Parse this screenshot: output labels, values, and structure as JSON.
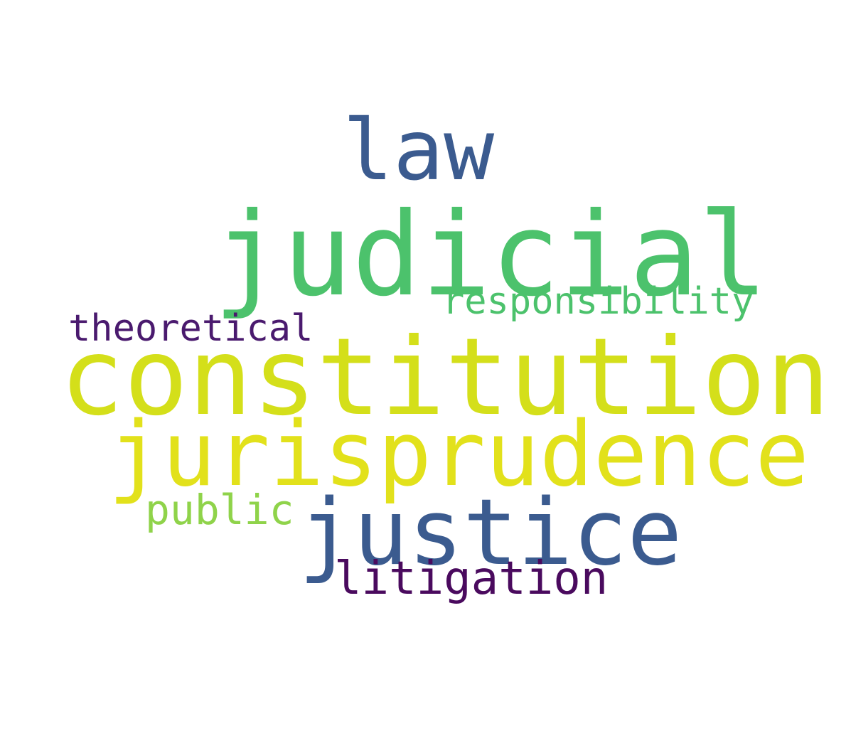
{
  "words": [
    {
      "id": "law",
      "text": "law",
      "color": "#3b5b8f"
    },
    {
      "id": "judicial",
      "text": "judicial",
      "color": "#4cc26c"
    },
    {
      "id": "responsibility",
      "text": "responsibility",
      "color": "#4cc26c"
    },
    {
      "id": "theoretical",
      "text": "theoretical",
      "color": "#4a1a6e"
    },
    {
      "id": "constitution",
      "text": "constitution",
      "color": "#d4df1a"
    },
    {
      "id": "jurisprudence",
      "text": "jurisprudence",
      "color": "#e2e11b"
    },
    {
      "id": "public",
      "text": "public",
      "color": "#8fd34a"
    },
    {
      "id": "justice",
      "text": "justice",
      "color": "#3b5b8f"
    },
    {
      "id": "litigation",
      "text": "litigation",
      "color": "#4a0a5e"
    }
  ],
  "colors": {
    "background": "#ffffff"
  }
}
